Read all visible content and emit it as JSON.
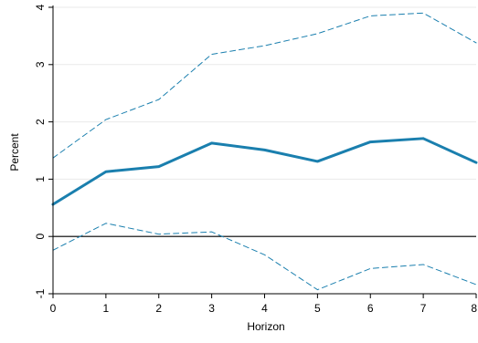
{
  "colors": {
    "line": "#1a7fae",
    "grid": "#eaeaea",
    "zero_line": "#000000",
    "axis": "#000000"
  },
  "chart_data": {
    "type": "line",
    "title": "",
    "xlabel": "Horizon",
    "ylabel": "Percent",
    "xlim": [
      0,
      8
    ],
    "ylim": [
      -1,
      4
    ],
    "x_ticks": [
      0,
      1,
      2,
      3,
      4,
      5,
      6,
      7,
      8
    ],
    "x_tick_labels": [
      "0",
      "1",
      "2",
      "3",
      "4",
      "5",
      "6",
      "7",
      "8"
    ],
    "y_ticks": [
      -1,
      0,
      1,
      2,
      3,
      4
    ],
    "y_tick_labels": [
      "-1",
      "0",
      "1",
      "2",
      "3",
      "4"
    ],
    "grid": true,
    "zero_line": true,
    "series": [
      {
        "style": "solid",
        "x": [
          0,
          1,
          2,
          3,
          4,
          5,
          6,
          7,
          8
        ],
        "values": [
          0.56,
          1.13,
          1.22,
          1.63,
          1.51,
          1.31,
          1.65,
          1.71,
          1.29
        ]
      },
      {
        "style": "dashed",
        "x": [
          0,
          1,
          2,
          3,
          4,
          5,
          6,
          7,
          8
        ],
        "values": [
          1.37,
          2.04,
          2.39,
          3.18,
          3.33,
          3.54,
          3.85,
          3.9,
          3.38
        ]
      },
      {
        "style": "dashed",
        "x": [
          0,
          1,
          2,
          3,
          4,
          5,
          6,
          7,
          8
        ],
        "values": [
          -0.24,
          0.23,
          0.04,
          0.08,
          -0.32,
          -0.93,
          -0.56,
          -0.49,
          -0.84
        ]
      }
    ]
  }
}
